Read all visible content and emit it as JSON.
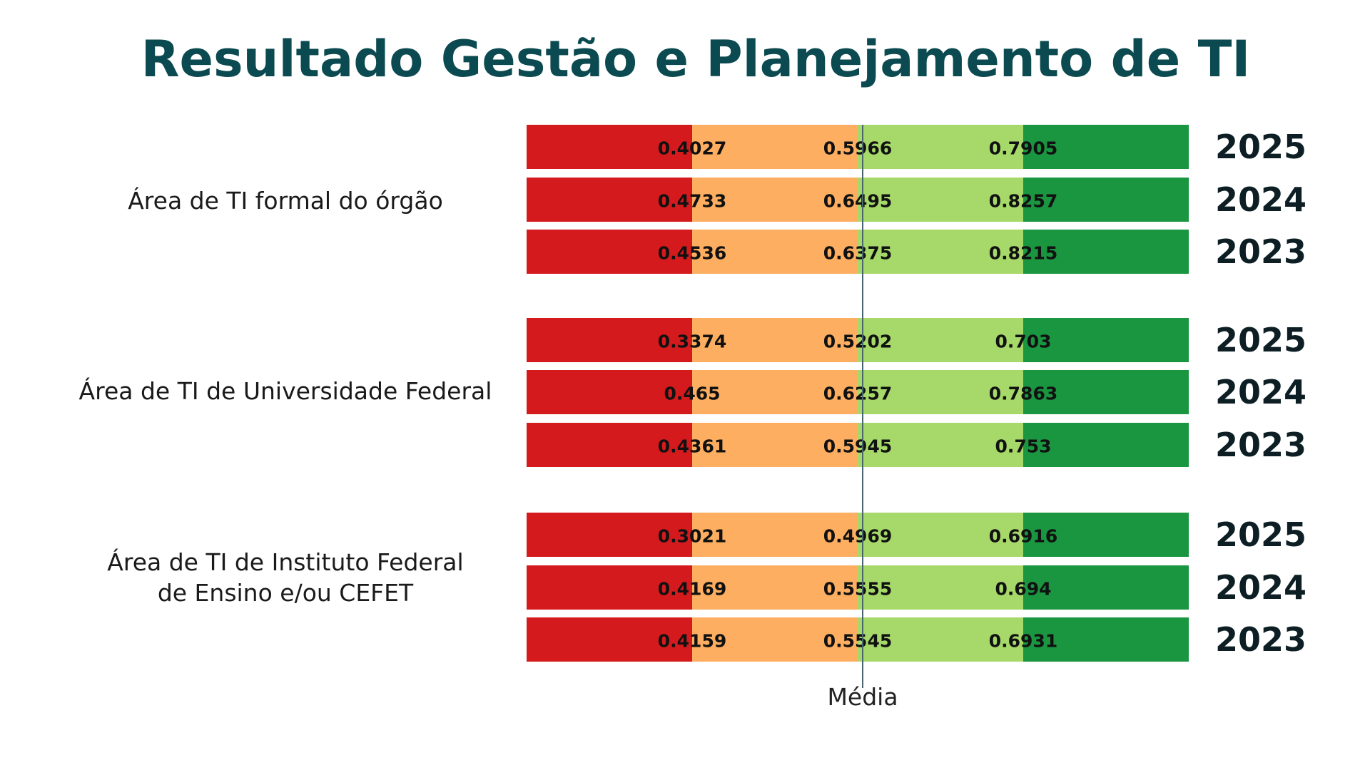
{
  "chart_data": {
    "type": "bar",
    "title": "Resultado Gestão e Planejamento de TI",
    "orientation": "horizontal",
    "segment_colors": [
      "#d41a1c",
      "#fdae61",
      "#a6d96a",
      "#1a9641"
    ],
    "reference_label": "Média",
    "value_keys": [
      "q1",
      "media",
      "q3"
    ],
    "groups": [
      {
        "label": "Área de TI formal do órgão",
        "rows": [
          {
            "year": "2025",
            "values": [
              "0.4027",
              "0.5966",
              "0.7905"
            ]
          },
          {
            "year": "2024",
            "values": [
              "0.4733",
              "0.6495",
              "0.8257"
            ]
          },
          {
            "year": "2023",
            "values": [
              "0.4536",
              "0.6375",
              "0.8215"
            ]
          }
        ]
      },
      {
        "label": "Área de TI de Universidade Federal",
        "rows": [
          {
            "year": "2025",
            "values": [
              "0.3374",
              "0.5202",
              "0.703"
            ]
          },
          {
            "year": "2024",
            "values": [
              "0.465",
              "0.6257",
              "0.7863"
            ]
          },
          {
            "year": "2023",
            "values": [
              "0.4361",
              "0.5945",
              "0.753"
            ]
          }
        ]
      },
      {
        "label": "Área de TI de Instituto Federal\nde Ensino e/ou CEFET",
        "rows": [
          {
            "year": "2025",
            "values": [
              "0.3021",
              "0.4969",
              "0.6916"
            ]
          },
          {
            "year": "2024",
            "values": [
              "0.4169",
              "0.5555",
              "0.694"
            ]
          },
          {
            "year": "2023",
            "values": [
              "0.4159",
              "0.5545",
              "0.6931"
            ]
          }
        ]
      }
    ]
  }
}
